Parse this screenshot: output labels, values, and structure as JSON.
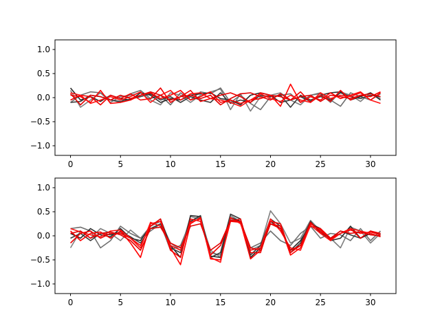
{
  "chart_data": [
    {
      "type": "line",
      "xlim": [
        -1.55,
        32.55
      ],
      "ylim": [
        -1.2,
        1.2
      ],
      "xticks": [
        0,
        5,
        10,
        15,
        20,
        25,
        30
      ],
      "yticks": [
        -1.0,
        -0.5,
        0.0,
        0.5,
        1.0
      ],
      "xtick_labels": [
        "0",
        "5",
        "10",
        "15",
        "20",
        "25",
        "30"
      ],
      "ytick_labels": [
        "−1.0",
        "−0.5",
        "0.0",
        "0.5",
        "1.0"
      ],
      "x": [
        0,
        1,
        2,
        3,
        4,
        5,
        6,
        7,
        8,
        9,
        10,
        11,
        12,
        13,
        14,
        15,
        16,
        17,
        18,
        19,
        20,
        21,
        22,
        23,
        24,
        25,
        26,
        27,
        28,
        29,
        30,
        31
      ],
      "series": [
        {
          "color": "#7f7f7f",
          "values": [
            0.15,
            -0.2,
            -0.05,
            0.1,
            -0.1,
            0.02,
            0.05,
            0.1,
            -0.05,
            -0.15,
            0.1,
            0.05,
            -0.1,
            0.05,
            0.12,
            0.18,
            -0.25,
            0.08,
            -0.28,
            0.02,
            0.05,
            0.1,
            -0.05,
            -0.15,
            0.05,
            0.08,
            -0.1,
            0.12,
            0.05,
            -0.08,
            0.1,
            -0.02
          ]
        },
        {
          "color": "#6f6f6f",
          "values": [
            -0.1,
            0.05,
            0.12,
            0.1,
            -0.05,
            -0.1,
            0.08,
            0.15,
            -0.02,
            0.05,
            -0.15,
            0.1,
            -0.05,
            0.12,
            0.08,
            0.2,
            -0.1,
            0.05,
            -0.12,
            -0.25,
            0.02,
            0.05,
            0.08,
            -0.1,
            0.05,
            0.1,
            -0.05,
            -0.18,
            0.1,
            0.02,
            -0.05,
            0.08
          ]
        },
        {
          "color": "#2b2b2b",
          "values": [
            0.2,
            -0.05,
            0.02,
            -0.08,
            0.05,
            -0.02,
            -0.05,
            0.1,
            0.05,
            -0.1,
            -0.02,
            -0.05,
            0.05,
            0.08,
            0.1,
            -0.02,
            -0.05,
            -0.15,
            0.05,
            0.1,
            0.05,
            -0.1,
            -0.05,
            0.02,
            -0.08,
            0.05,
            0.1,
            0.12,
            -0.05,
            0.02,
            0.1,
            -0.05
          ]
        },
        {
          "color": "#3a3a3a",
          "values": [
            -0.1,
            -0.08,
            0.05,
            0.02,
            -0.05,
            -0.08,
            -0.03,
            0.02,
            0.08,
            -0.05,
            0.02,
            -0.1,
            0.02,
            -0.05,
            -0.1,
            0.1,
            -0.12,
            -0.05,
            -0.1,
            0.05,
            0.02,
            0.05,
            -0.2,
            0.05,
            -0.05,
            0.02,
            -0.05,
            0.1,
            0.02,
            -0.02,
            0.05,
            0.02
          ]
        },
        {
          "color": "#ff0000",
          "values": [
            0.05,
            0.02,
            -0.1,
            0.15,
            -0.12,
            -0.1,
            -0.05,
            0.05,
            0.1,
            -0.02,
            0.05,
            0.15,
            -0.05,
            0.02,
            0.12,
            -0.1,
            -0.05,
            -0.12,
            -0.05,
            -0.02,
            0.05,
            -0.18,
            0.28,
            -0.1,
            0.02,
            -0.05,
            0.1,
            -0.02,
            0.05,
            0.12,
            -0.05,
            0.1
          ]
        },
        {
          "color": "#ee0000",
          "values": [
            -0.05,
            0.05,
            0.02,
            -0.15,
            0.05,
            -0.02,
            0.08,
            -0.05,
            -0.02,
            0.2,
            -0.1,
            0.02,
            0.15,
            -0.08,
            -0.02,
            0.05,
            0.1,
            0.02,
            -0.1,
            0.1,
            0.05,
            0.02,
            -0.05,
            0.12,
            -0.1,
            0.05,
            -0.08,
            0.15,
            -0.05,
            0.05,
            0.02,
            0.12
          ]
        },
        {
          "color": "#ff1010",
          "values": [
            0.1,
            0.05,
            -0.12,
            -0.05,
            0.02,
            -0.05,
            0.02,
            0.12,
            -0.1,
            0.05,
            0.15,
            -0.05,
            0.08,
            0.1,
            -0.02,
            -0.05,
            -0.1,
            -0.18,
            -0.05,
            0.08,
            -0.02,
            -0.08,
            0.05,
            -0.05,
            -0.1,
            0.1,
            -0.02,
            0.05,
            0.02,
            0.1,
            -0.05,
            -0.12
          ]
        },
        {
          "color": "#e00000",
          "values": [
            0.08,
            -0.15,
            0.05,
            0.02,
            -0.05,
            0.05,
            -0.02,
            0.05,
            0.12,
            0.05,
            -0.05,
            0.02,
            0.05,
            -0.02,
            0.05,
            -0.15,
            -0.02,
            0.08,
            0.1,
            0.02,
            -0.05,
            0.08,
            -0.05,
            0.02,
            0.05,
            -0.08,
            0.05,
            0.02,
            -0.02,
            0.05,
            0.08,
            0.02
          ]
        }
      ]
    },
    {
      "type": "line",
      "xlim": [
        -1.55,
        32.55
      ],
      "ylim": [
        -1.2,
        1.2
      ],
      "xticks": [
        0,
        5,
        10,
        15,
        20,
        25,
        30
      ],
      "yticks": [
        -1.0,
        -0.5,
        0.0,
        0.5,
        1.0
      ],
      "xtick_labels": [
        "0",
        "5",
        "10",
        "15",
        "20",
        "25",
        "30"
      ],
      "ytick_labels": [
        "−1.0",
        "−0.5",
        "0.0",
        "0.5",
        "1.0"
      ],
      "x": [
        0,
        1,
        2,
        3,
        4,
        5,
        6,
        7,
        8,
        9,
        10,
        11,
        12,
        13,
        14,
        15,
        16,
        17,
        18,
        19,
        20,
        21,
        22,
        23,
        24,
        25,
        26,
        27,
        28,
        29,
        30,
        31
      ],
      "series": [
        {
          "color": "#7f7f7f",
          "values": [
            -0.25,
            0.1,
            -0.05,
            0.15,
            0.05,
            -0.1,
            0.12,
            -0.05,
            0.2,
            0.3,
            -0.15,
            -0.3,
            0.4,
            0.35,
            -0.3,
            -0.45,
            0.42,
            0.3,
            -0.3,
            -0.2,
            0.52,
            0.25,
            -0.15,
            -0.05,
            0.32,
            0.1,
            -0.05,
            -0.25,
            0.18,
            0.1,
            -0.15,
            0.05
          ]
        },
        {
          "color": "#6f6f6f",
          "values": [
            0.15,
            0.18,
            0.1,
            -0.25,
            -0.1,
            0.2,
            0.05,
            -0.05,
            0.1,
            0.25,
            -0.3,
            -0.2,
            0.3,
            0.4,
            -0.35,
            -0.4,
            0.35,
            0.3,
            -0.25,
            -0.15,
            0.1,
            -0.1,
            -0.2,
            0.05,
            0.2,
            -0.05,
            0.05,
            0.02,
            -0.1,
            0.15,
            -0.1,
            0.1
          ]
        },
        {
          "color": "#2b2b2b",
          "values": [
            0.05,
            -0.05,
            0.15,
            0.02,
            -0.02,
            0.15,
            -0.05,
            -0.1,
            0.2,
            0.35,
            -0.2,
            -0.45,
            0.42,
            0.4,
            -0.42,
            -0.45,
            0.38,
            0.3,
            -0.45,
            -0.25,
            0.3,
            0.15,
            -0.3,
            -0.1,
            0.25,
            0.15,
            -0.1,
            -0.05,
            0.2,
            -0.05,
            0.05,
            -0.02
          ]
        },
        {
          "color": "#3a3a3a",
          "values": [
            -0.05,
            0.05,
            -0.1,
            0.05,
            0.02,
            0.08,
            -0.02,
            -0.15,
            0.15,
            0.25,
            -0.25,
            -0.35,
            0.3,
            0.42,
            -0.45,
            -0.35,
            0.45,
            0.35,
            -0.4,
            -0.2,
            0.35,
            0.2,
            -0.35,
            -0.15,
            0.3,
            0.05,
            -0.05,
            0.1,
            0.02,
            -0.05,
            0.1,
            0.02
          ]
        },
        {
          "color": "#ff0000",
          "values": [
            0.1,
            -0.1,
            0.05,
            0.08,
            -0.05,
            0.1,
            -0.15,
            -0.45,
            0.25,
            0.3,
            -0.25,
            -0.6,
            0.25,
            0.38,
            -0.48,
            -0.5,
            0.3,
            0.28,
            -0.48,
            -0.3,
            0.25,
            0.2,
            -0.4,
            -0.25,
            0.25,
            0.12,
            -0.08,
            0.05,
            0.12,
            0.05,
            0.08,
            0.02
          ]
        },
        {
          "color": "#ee0000",
          "values": [
            -0.15,
            0.05,
            0.1,
            -0.05,
            0.05,
            0.05,
            -0.05,
            -0.2,
            0.2,
            0.35,
            -0.3,
            -0.45,
            0.35,
            0.3,
            -0.4,
            -0.2,
            0.3,
            0.35,
            -0.35,
            -0.35,
            0.3,
            0.25,
            -0.35,
            -0.2,
            0.2,
            0.15,
            -0.05,
            0.05,
            0.15,
            -0.05,
            0.1,
            0.05
          ]
        },
        {
          "color": "#ff1010",
          "values": [
            0.15,
            0.08,
            0.02,
            -0.02,
            0.1,
            0.12,
            -0.05,
            -0.25,
            0.28,
            0.2,
            -0.2,
            -0.3,
            0.28,
            0.35,
            -0.45,
            -0.55,
            0.38,
            0.25,
            -0.3,
            -0.25,
            0.35,
            0.1,
            -0.25,
            -0.3,
            0.22,
            0.05,
            -0.1,
            0.05,
            0.15,
            0.1,
            0.05,
            -0.02
          ]
        },
        {
          "color": "#e00000",
          "values": [
            0.05,
            0.1,
            -0.05,
            0.05,
            0.08,
            0.02,
            -0.1,
            -0.3,
            0.15,
            0.18,
            -0.15,
            -0.25,
            0.2,
            0.25,
            -0.3,
            -0.15,
            0.32,
            0.3,
            -0.25,
            -0.3,
            0.25,
            0.15,
            -0.3,
            -0.2,
            0.28,
            0.08,
            -0.05,
            0.1,
            0.05,
            0.08,
            0.02,
            0.0
          ]
        }
      ]
    }
  ]
}
